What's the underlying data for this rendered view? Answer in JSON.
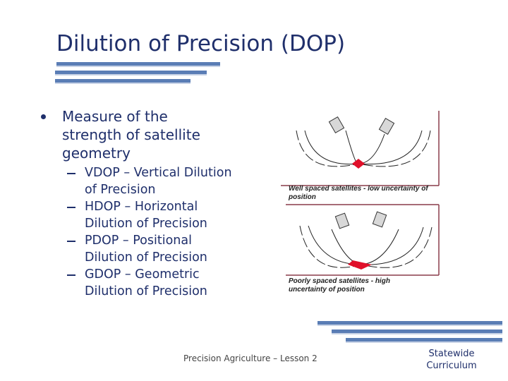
{
  "slide": {
    "title": "Dilution of Precision (DOP)",
    "bullet": "Measure of the strength of satellite geometry",
    "sub_bullets": [
      "VDOP – Vertical Dilution of Precision",
      "HDOP – Horizontal Dilution of Precision",
      "PDOP – Positional Dilution of Precision",
      "GDOP – Geometric Dilution of Precision"
    ],
    "figure": {
      "panels": [
        {
          "caption": "Well spaced satellites - low uncertainty of position"
        },
        {
          "caption": "Poorly spaced satellites - high uncertainty of position"
        }
      ]
    },
    "footer": {
      "center": "Precision Agriculture – Lesson 2",
      "right": "Statewide Curriculum"
    }
  }
}
